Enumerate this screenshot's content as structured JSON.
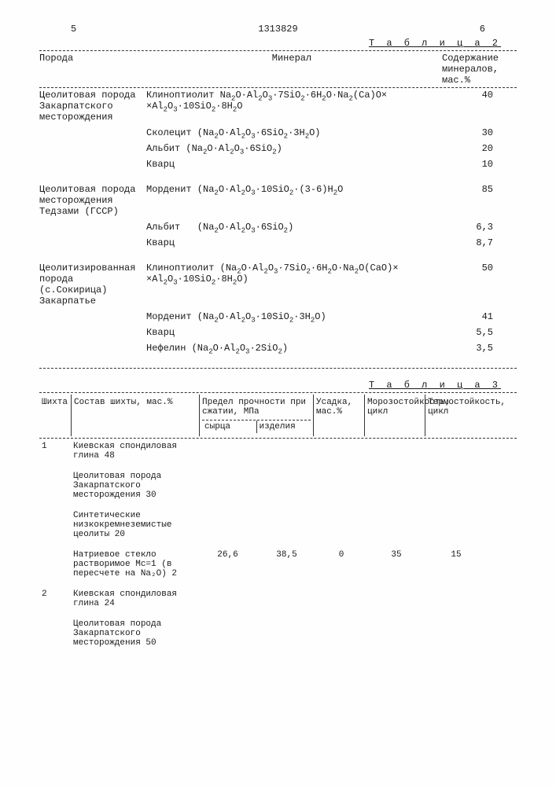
{
  "header": {
    "left_pg": "5",
    "doc_no": "1313829",
    "right_pg": "6"
  },
  "table2": {
    "label": "Т а б л и ц а 2",
    "cols": {
      "rock": "Порода",
      "mineral": "Минерал",
      "content": "Содержание минералов, мас.%"
    },
    "groups": [
      {
        "rock": "Цеолитовая порода Закарпатского месторождения",
        "rows": [
          {
            "mineral_html": "Клиноптиолит Na<sub>2</sub>O·Al<sub>2</sub>O<sub>3</sub>·7SiO<sub>2</sub>·6H<sub>2</sub>O·Na<sub>2</sub>(Ca)O×<br>×Al<sub>2</sub>O<sub>3</sub>·10SiO<sub>2</sub>·8H<sub>2</sub>O",
            "val": "40"
          },
          {
            "mineral_html": "Сколецит (Na<sub>2</sub>O·Al<sub>2</sub>O<sub>3</sub>·6SiO<sub>2</sub>·3H<sub>2</sub>O)",
            "val": "30"
          },
          {
            "mineral_html": "Альбит (Na<sub>2</sub>O·Al<sub>2</sub>O<sub>3</sub>·6SiO<sub>2</sub>)",
            "val": "20"
          },
          {
            "mineral_html": "Кварц",
            "val": "10"
          }
        ]
      },
      {
        "rock": "Цеолитовая порода месторождения Тедзами (ГССР)",
        "rows": [
          {
            "mineral_html": "Морденит (Na<sub>2</sub>O·Al<sub>2</sub>O<sub>3</sub>·10SiO<sub>2</sub>·(3-6)H<sub>2</sub>O",
            "val": "85"
          },
          {
            "mineral_html": "Альбит &nbsp; (Na<sub>2</sub>O·Al<sub>2</sub>O<sub>3</sub>·6SiO<sub>2</sub>)",
            "val": "6,3"
          },
          {
            "mineral_html": "Кварц",
            "val": "8,7"
          }
        ]
      },
      {
        "rock": "Цеолитизированная порода (с.Сокирица) Закарпатье",
        "rows": [
          {
            "mineral_html": "Клиноптиолит (Na<sub>2</sub>O·Al<sub>2</sub>O<sub>3</sub>·7SiO<sub>2</sub>·6H<sub>2</sub>O·Na<sub>2</sub>O(CaO)×<br>×Al<sub>2</sub>O<sub>3</sub>·10SiO<sub>2</sub>·8H<sub>2</sub>O)",
            "val": "50"
          },
          {
            "mineral_html": "Морденит (Na<sub>2</sub>O·Al<sub>2</sub>O<sub>3</sub>·10SiO<sub>2</sub>·3H<sub>2</sub>O)",
            "val": "41"
          },
          {
            "mineral_html": "Кварц",
            "val": "5,5"
          },
          {
            "mineral_html": "Нефелин (Na<sub>2</sub>O·Al<sub>2</sub>O<sub>3</sub>·2SiO<sub>2</sub>)",
            "val": "3,5"
          }
        ]
      }
    ]
  },
  "table3": {
    "label": "Т а б л и ц а  3",
    "cols": {
      "mix": "Шихта",
      "composition": "Состав шихты, мас.%",
      "strength": "Предел прочности при сжатии, МПа",
      "strength_sub1": "сырца",
      "strength_sub2": "изделия",
      "shrink": "Усадка, мас.%",
      "frost": "Морозостойкость, цикл",
      "thermo": "Термостойкость, цикл"
    },
    "rows": [
      {
        "n": "1",
        "components": [
          "Киевская спондиловая глина 48",
          "Цеолитовая порода Закарпатского месторождения 30",
          "Синтетические низкокремнеземистые цеолиты 20",
          "Натриевое стекло растворимое Мс=1 (в пересчете на Na₂O) 2"
        ],
        "vals": {
          "s1": "26,6",
          "s2": "38,5",
          "shr": "0",
          "frost": "35",
          "therm": "15"
        }
      },
      {
        "n": "2",
        "components": [
          "Киевская спондиловая глина 24",
          "Цеолитовая порода Закарпатского месторождения 50"
        ],
        "vals": null
      }
    ]
  }
}
